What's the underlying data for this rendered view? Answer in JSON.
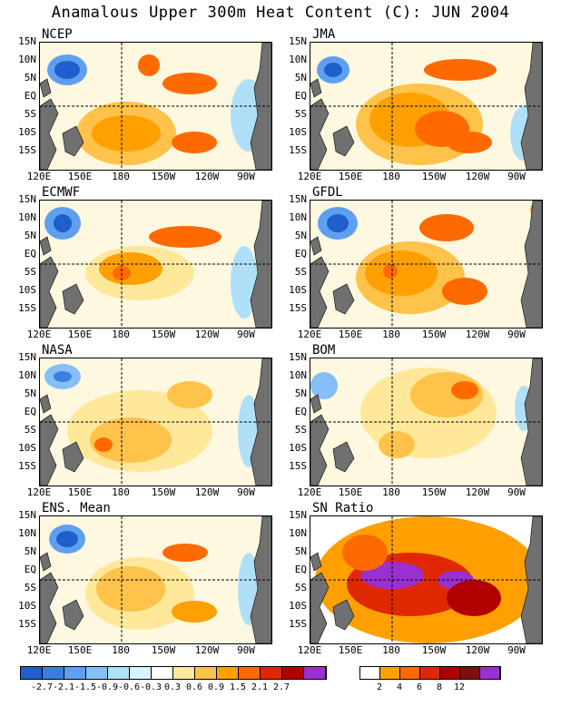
{
  "title": "Anamalous Upper 300m Heat Content (C): JUN 2004",
  "lat_labels": [
    "15N",
    "10N",
    "5N",
    "EQ",
    "5S",
    "10S",
    "15S"
  ],
  "lon_labels": [
    "120E",
    "150E",
    "180",
    "150W",
    "120W",
    "90W"
  ],
  "panels": [
    {
      "name": "NCEP"
    },
    {
      "name": "JMA"
    },
    {
      "name": "ECMWF"
    },
    {
      "name": "GFDL"
    },
    {
      "name": "NASA"
    },
    {
      "name": "BOM"
    },
    {
      "name": "ENS. Mean"
    },
    {
      "name": "SN Ratio"
    }
  ],
  "anomaly_colorbar": {
    "colors": [
      "#1f5fcc",
      "#3a7fe0",
      "#5f9ff0",
      "#85bff5",
      "#b0e0f7",
      "#d8f4fb",
      "#ffffff",
      "#ffe89a",
      "#ffc24a",
      "#ffa000",
      "#ff6a00",
      "#e02800",
      "#b00000",
      "#9a30d0"
    ],
    "labels": [
      "-2.7",
      "-2.1",
      "-1.5",
      "-0.9",
      "-0.6",
      "-0.3",
      "0.3",
      "0.6",
      "0.9",
      "1.5",
      "2.1",
      "2.7"
    ]
  },
  "ratio_colorbar": {
    "colors": [
      "#ffffff",
      "#ffa000",
      "#ff6a00",
      "#e02800",
      "#b00000",
      "#801010",
      "#9a30d0"
    ],
    "labels": [
      "2",
      "4",
      "6",
      "8",
      "12"
    ]
  }
}
